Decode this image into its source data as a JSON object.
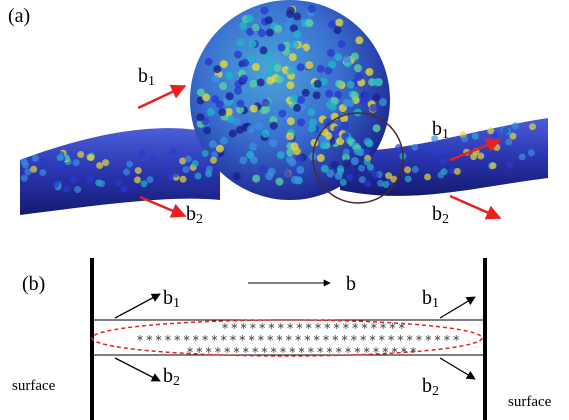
{
  "panel_a": {
    "label": "(a)",
    "vectors": [
      {
        "base": "b",
        "sub": "1"
      },
      {
        "base": "b",
        "sub": "2"
      },
      {
        "base": "b",
        "sub": "1"
      },
      {
        "base": "b",
        "sub": "2"
      }
    ]
  },
  "panel_b": {
    "label": "(b)",
    "direction": "b",
    "vectors": [
      {
        "base": "b",
        "sub": "1"
      },
      {
        "base": "b",
        "sub": "2"
      },
      {
        "base": "b",
        "sub": "1"
      },
      {
        "base": "b",
        "sub": "2"
      }
    ],
    "surface_left": "surface",
    "surface_right": "surface"
  }
}
